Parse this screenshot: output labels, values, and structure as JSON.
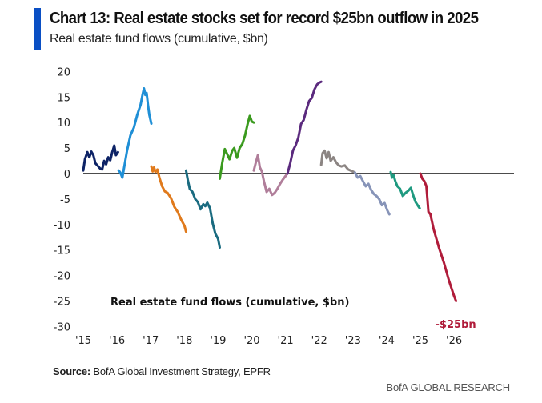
{
  "header": {
    "title": "Chart 13: Real estate stocks set for record $25bn outflow in 2025",
    "subtitle": "Real estate fund flows (cumulative, $bn)",
    "accent_color": "#0a4fc4"
  },
  "footer": {
    "source_label": "Source:",
    "source_text": " BofA Global Investment Strategy, EPFR",
    "brand": "BofA GLOBAL RESEARCH"
  },
  "chart_data": {
    "type": "line",
    "title": "Chart 13: Real estate stocks set for record $25bn outflow in 2025",
    "subtitle": "Real estate fund flows (cumulative, $bn)",
    "xlabel": "",
    "ylabel": "",
    "inner_label": "Real estate fund flows (cumulative, $bn)",
    "xlim": [
      2015,
      2026.8
    ],
    "ylim": [
      -30,
      20
    ],
    "x_ticks": [
      2015,
      2016,
      2017,
      2018,
      2019,
      2020,
      2021,
      2022,
      2023,
      2024,
      2025,
      2026
    ],
    "x_tick_labels": [
      "'15",
      "'16",
      "'17",
      "'18",
      "'19",
      "'20",
      "'21",
      "'22",
      "'23",
      "'24",
      "'25",
      "'26"
    ],
    "y_ticks": [
      20,
      15,
      10,
      5,
      0,
      -5,
      -10,
      -15,
      -20,
      -25,
      -30
    ],
    "y_tick_labels": [
      "20",
      "15",
      "10",
      "5",
      "0",
      "-5",
      "-10",
      "-15",
      "-20",
      "-25",
      "-30"
    ],
    "zero_line": true,
    "grid": false,
    "legend": "none",
    "annotations": [
      {
        "text": "-$25bn",
        "x": 2026.0,
        "y": -29.5,
        "color": "#b01c3a"
      }
    ],
    "series": [
      {
        "name": "2015",
        "color": "#0d2366",
        "x": [
          2015.0,
          2015.05,
          2015.12,
          2015.18,
          2015.24,
          2015.3,
          2015.36,
          2015.42,
          2015.5,
          2015.56,
          2015.62,
          2015.68,
          2015.74,
          2015.8,
          2015.86,
          2015.92,
          2015.97,
          2016.03
        ],
        "y": [
          0.6,
          2.8,
          4.2,
          3.2,
          4.3,
          3.6,
          2.0,
          1.6,
          1.0,
          0.8,
          2.5,
          1.8,
          3.2,
          2.6,
          4.2,
          5.5,
          3.6,
          4.2
        ]
      },
      {
        "name": "2016",
        "color": "#1f8fd6",
        "x": [
          2016.05,
          2016.1,
          2016.16,
          2016.22,
          2016.3,
          2016.4,
          2016.5,
          2016.6,
          2016.7,
          2016.76,
          2016.8,
          2016.84,
          2016.88,
          2016.92,
          2016.96,
          2017.02
        ],
        "y": [
          0.6,
          0.2,
          -0.8,
          1.5,
          4.5,
          7.5,
          9.0,
          11.5,
          13.5,
          15.5,
          16.7,
          15.4,
          15.8,
          13.5,
          11.5,
          9.8
        ]
      },
      {
        "name": "2017",
        "color": "#e07a1c",
        "x": [
          2017.02,
          2017.06,
          2017.1,
          2017.14,
          2017.2,
          2017.26,
          2017.34,
          2017.42,
          2017.5,
          2017.6,
          2017.7,
          2017.8,
          2017.9,
          2018.0,
          2018.05
        ],
        "y": [
          1.4,
          0.4,
          1.2,
          0.3,
          0.8,
          -0.8,
          -2.5,
          -3.5,
          -3.8,
          -4.8,
          -6.5,
          -7.5,
          -9.0,
          -10.2,
          -11.4
        ]
      },
      {
        "name": "2018",
        "color": "#1a6b80",
        "x": [
          2018.05,
          2018.1,
          2018.16,
          2018.24,
          2018.32,
          2018.4,
          2018.48,
          2018.56,
          2018.62,
          2018.68,
          2018.76,
          2018.84,
          2018.92,
          2019.0,
          2019.05
        ],
        "y": [
          0.6,
          -1.2,
          -3.0,
          -3.6,
          -5.0,
          -5.6,
          -7.0,
          -6.0,
          -6.4,
          -5.7,
          -6.8,
          -9.8,
          -11.8,
          -12.8,
          -14.5
        ]
      },
      {
        "name": "2019",
        "color": "#3a9a1e",
        "x": [
          2019.05,
          2019.12,
          2019.2,
          2019.27,
          2019.34,
          2019.42,
          2019.48,
          2019.56,
          2019.64,
          2019.72,
          2019.8,
          2019.88,
          2019.94,
          2020.0,
          2020.06
        ],
        "y": [
          -1.0,
          2.0,
          4.8,
          3.8,
          2.8,
          4.5,
          5.0,
          3.1,
          5.0,
          5.8,
          7.5,
          9.8,
          11.3,
          10.2,
          10.0
        ]
      },
      {
        "name": "2020",
        "color": "#b07e9a",
        "x": [
          2020.06,
          2020.12,
          2020.18,
          2020.24,
          2020.3,
          2020.36,
          2020.44,
          2020.52,
          2020.6,
          2020.68,
          2020.76,
          2020.84,
          2020.92,
          2021.0,
          2021.06
        ],
        "y": [
          0.6,
          2.2,
          3.6,
          1.2,
          0.4,
          -1.5,
          -3.6,
          -3.0,
          -4.2,
          -3.8,
          -3.0,
          -2.0,
          -1.2,
          -0.5,
          0.0
        ]
      },
      {
        "name": "2021",
        "color": "#5b2a7e",
        "x": [
          2021.06,
          2021.14,
          2021.22,
          2021.3,
          2021.38,
          2021.46,
          2021.54,
          2021.62,
          2021.7,
          2021.78,
          2021.86,
          2021.94,
          2022.0,
          2022.06
        ],
        "y": [
          0.0,
          2.0,
          4.5,
          5.5,
          7.0,
          9.7,
          10.5,
          12.5,
          14.2,
          14.8,
          16.5,
          17.5,
          17.8,
          18.0
        ]
      },
      {
        "name": "2022",
        "color": "#8c8583",
        "x": [
          2022.06,
          2022.1,
          2022.16,
          2022.22,
          2022.28,
          2022.34,
          2022.42,
          2022.5,
          2022.58,
          2022.66,
          2022.76,
          2022.86,
          2022.96,
          2023.06
        ],
        "y": [
          1.7,
          4.0,
          4.5,
          3.0,
          4.2,
          2.5,
          3.2,
          2.2,
          1.6,
          1.4,
          1.6,
          0.8,
          0.5,
          0.2
        ]
      },
      {
        "name": "2023",
        "color": "#8794b8",
        "x": [
          2023.06,
          2023.14,
          2023.22,
          2023.3,
          2023.38,
          2023.46,
          2023.54,
          2023.62,
          2023.7,
          2023.78,
          2023.86,
          2023.94,
          2024.02,
          2024.08
        ],
        "y": [
          0.2,
          -0.8,
          -0.5,
          -1.5,
          -2.5,
          -2.0,
          -3.2,
          -4.0,
          -4.4,
          -5.0,
          -6.2,
          -5.8,
          -7.2,
          -8.0
        ]
      },
      {
        "name": "2024",
        "color": "#1f9a80",
        "x": [
          2024.12,
          2024.16,
          2024.2,
          2024.26,
          2024.32,
          2024.4,
          2024.48,
          2024.56,
          2024.64,
          2024.72,
          2024.8,
          2024.86,
          2024.92,
          2024.98
        ],
        "y": [
          0.3,
          -0.8,
          -0.2,
          -1.5,
          -2.5,
          -3.0,
          -4.4,
          -3.8,
          -3.4,
          -2.8,
          -4.5,
          -5.6,
          -6.2,
          -6.8
        ]
      },
      {
        "name": "2025",
        "color": "#b01c3a",
        "x": [
          2025.0,
          2025.06,
          2025.12,
          2025.18,
          2025.24,
          2025.3,
          2025.4,
          2025.55,
          2025.7,
          2025.85,
          2026.0,
          2026.06
        ],
        "y": [
          0.0,
          -1.0,
          -1.5,
          -2.5,
          -7.5,
          -8.0,
          -11.0,
          -14.5,
          -17.5,
          -21.0,
          -24.0,
          -25.0
        ]
      }
    ]
  }
}
